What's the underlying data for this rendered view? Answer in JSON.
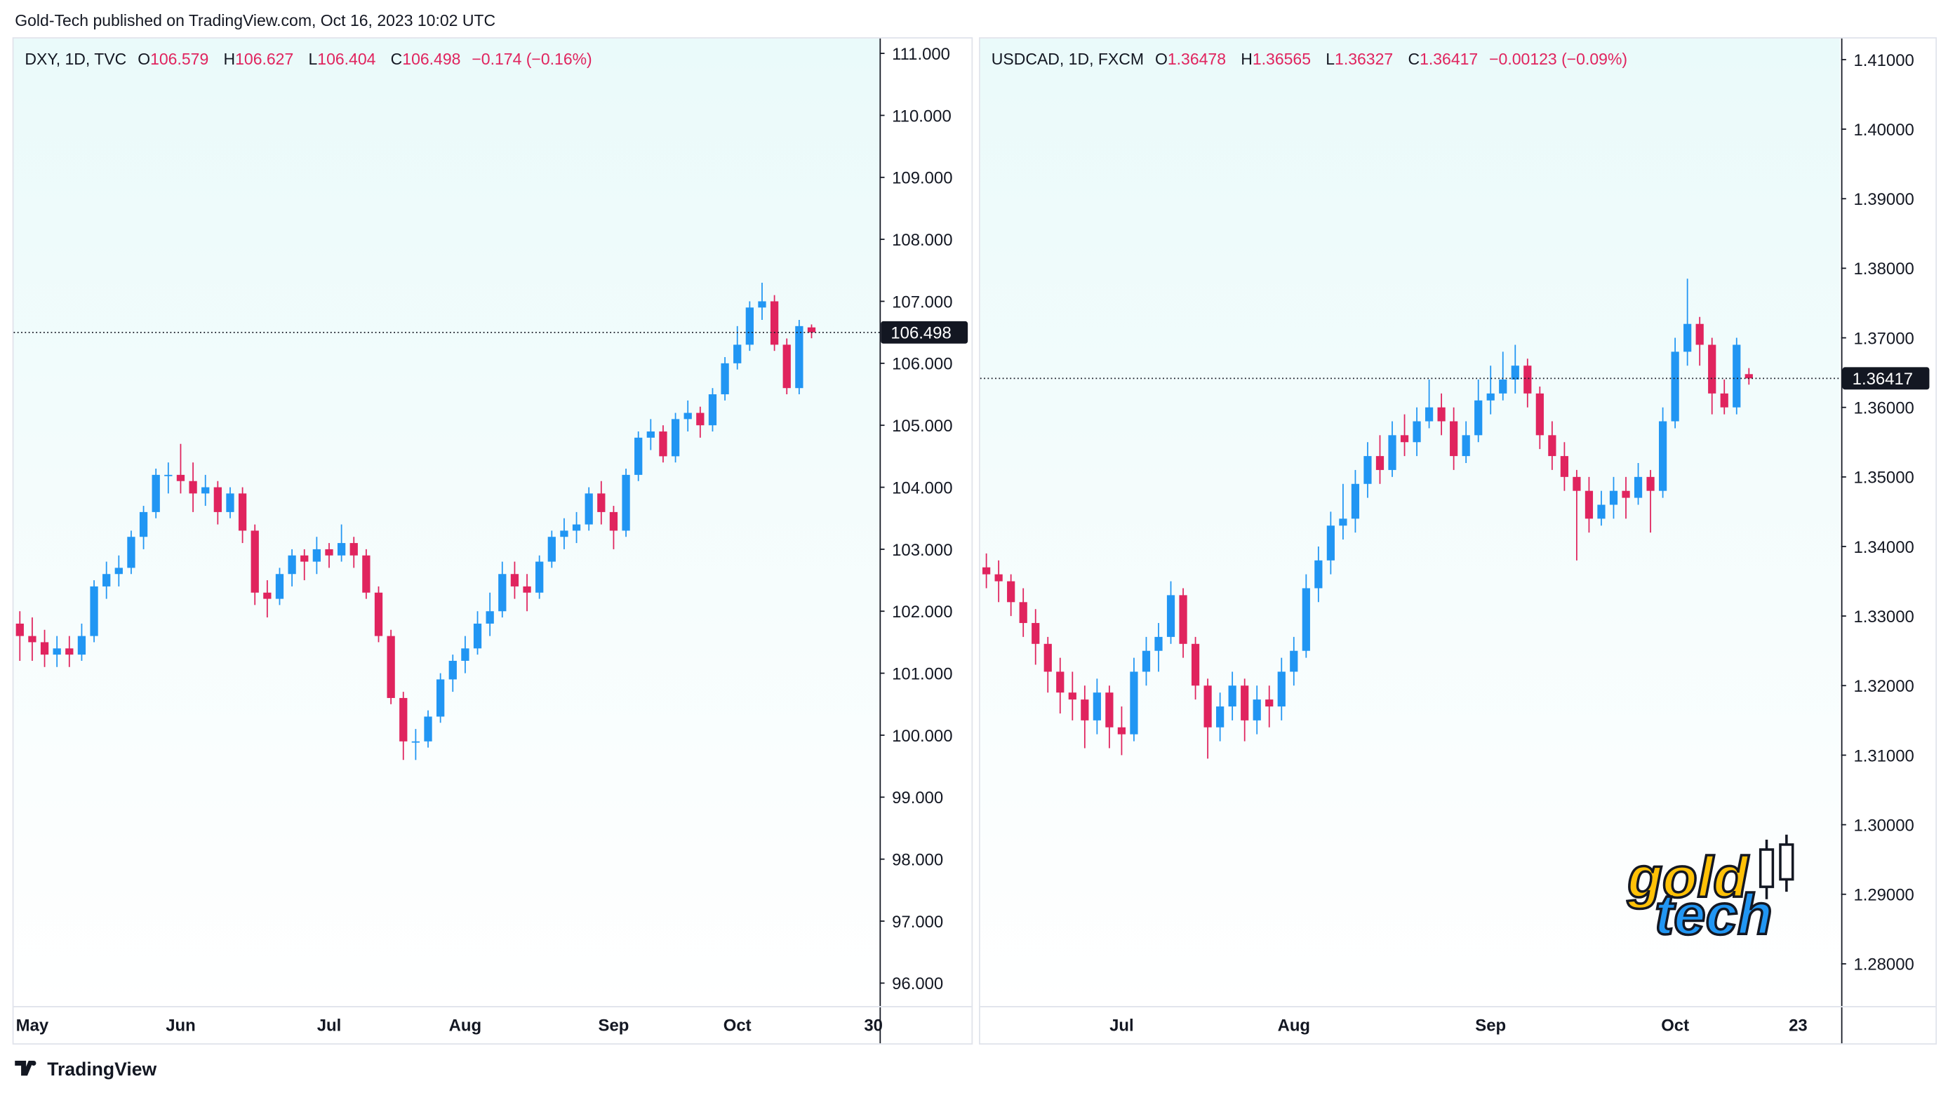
{
  "header": "Gold-Tech published on TradingView.com, Oct 16, 2023 10:02 UTC",
  "brand": "TradingView",
  "watermark": [
    "gold",
    "tech"
  ],
  "chart_data": [
    {
      "type": "candlestick",
      "legend": {
        "symbol": "DXY, 1D, TVC",
        "items": [
          {
            "key": "O",
            "value": "106.579"
          },
          {
            "key": "H",
            "value": "106.627"
          },
          {
            "key": "L",
            "value": "106.404"
          },
          {
            "key": "C",
            "value": "106.498"
          }
        ],
        "change": "−0.174 (−0.16%)"
      },
      "up_color": "#2196f3",
      "down_color": "#e0245e",
      "grid": false,
      "ylim": [
        95.63,
        111.26
      ],
      "yticks": [
        {
          "value": 96,
          "label": "96.000"
        },
        {
          "value": 97,
          "label": "97.000"
        },
        {
          "value": 98,
          "label": "98.000"
        },
        {
          "value": 99,
          "label": "99.000"
        },
        {
          "value": 100,
          "label": "100.000"
        },
        {
          "value": 101,
          "label": "101.000"
        },
        {
          "value": 102,
          "label": "102.000"
        },
        {
          "value": 103,
          "label": "103.000"
        },
        {
          "value": 104,
          "label": "104.000"
        },
        {
          "value": 105,
          "label": "105.000"
        },
        {
          "value": 106,
          "label": "106.000"
        },
        {
          "value": 107,
          "label": "107.000"
        },
        {
          "value": 108,
          "label": "108.000"
        },
        {
          "value": 109,
          "label": "109.000"
        },
        {
          "value": 110,
          "label": "110.000"
        },
        {
          "value": 111,
          "label": "111.000"
        }
      ],
      "last_price": 106.498,
      "categories": [
        null,
        "May",
        null,
        null,
        null,
        null,
        null,
        null,
        null,
        null,
        null,
        null,
        null,
        "Jun",
        null,
        null,
        null,
        null,
        null,
        null,
        null,
        null,
        null,
        null,
        null,
        "Jul",
        null,
        null,
        null,
        null,
        null,
        null,
        null,
        null,
        null,
        null,
        "Aug",
        null,
        null,
        null,
        null,
        null,
        null,
        null,
        null,
        null,
        null,
        null,
        "Sep",
        null,
        null,
        null,
        null,
        null,
        null,
        null,
        null,
        null,
        "Oct",
        null,
        null,
        null,
        null,
        null,
        null,
        null,
        null,
        null,
        null,
        "30"
      ],
      "candles": [
        [
          101.8,
          102.0,
          101.2,
          101.6
        ],
        [
          101.6,
          101.9,
          101.2,
          101.5
        ],
        [
          101.5,
          101.7,
          101.1,
          101.3
        ],
        [
          101.3,
          101.6,
          101.1,
          101.4
        ],
        [
          101.4,
          101.6,
          101.1,
          101.3
        ],
        [
          101.3,
          101.8,
          101.2,
          101.6
        ],
        [
          101.6,
          102.5,
          101.5,
          102.4
        ],
        [
          102.4,
          102.8,
          102.2,
          102.6
        ],
        [
          102.6,
          102.9,
          102.4,
          102.7
        ],
        [
          102.7,
          103.3,
          102.6,
          103.2
        ],
        [
          103.2,
          103.7,
          103.0,
          103.6
        ],
        [
          103.6,
          104.3,
          103.5,
          104.2
        ],
        [
          104.2,
          104.4,
          103.9,
          104.2
        ],
        [
          104.2,
          104.7,
          103.9,
          104.1
        ],
        [
          104.1,
          104.4,
          103.6,
          103.9
        ],
        [
          103.9,
          104.2,
          103.7,
          104.0
        ],
        [
          104.0,
          104.1,
          103.4,
          103.6
        ],
        [
          103.6,
          104.0,
          103.5,
          103.9
        ],
        [
          103.9,
          104.0,
          103.1,
          103.3
        ],
        [
          103.3,
          103.4,
          102.1,
          102.3
        ],
        [
          102.3,
          102.5,
          101.9,
          102.2
        ],
        [
          102.2,
          102.7,
          102.1,
          102.6
        ],
        [
          102.6,
          103.0,
          102.4,
          102.9
        ],
        [
          102.9,
          103.0,
          102.5,
          102.8
        ],
        [
          102.8,
          103.2,
          102.6,
          103.0
        ],
        [
          103.0,
          103.1,
          102.7,
          102.9
        ],
        [
          102.9,
          103.4,
          102.8,
          103.1
        ],
        [
          103.1,
          103.2,
          102.7,
          102.9
        ],
        [
          102.9,
          103.0,
          102.2,
          102.3
        ],
        [
          102.3,
          102.4,
          101.5,
          101.6
        ],
        [
          101.6,
          101.7,
          100.5,
          100.6
        ],
        [
          100.6,
          100.7,
          99.6,
          99.9
        ],
        [
          99.9,
          100.1,
          99.6,
          99.9
        ],
        [
          99.9,
          100.4,
          99.8,
          100.3
        ],
        [
          100.3,
          101.0,
          100.2,
          100.9
        ],
        [
          100.9,
          101.3,
          100.7,
          101.2
        ],
        [
          101.2,
          101.6,
          101.0,
          101.4
        ],
        [
          101.4,
          102.0,
          101.3,
          101.8
        ],
        [
          101.8,
          102.3,
          101.6,
          102.0
        ],
        [
          102.0,
          102.8,
          101.9,
          102.6
        ],
        [
          102.6,
          102.8,
          102.2,
          102.4
        ],
        [
          102.4,
          102.6,
          102.0,
          102.3
        ],
        [
          102.3,
          102.9,
          102.2,
          102.8
        ],
        [
          102.8,
          103.3,
          102.7,
          103.2
        ],
        [
          103.2,
          103.5,
          103.0,
          103.3
        ],
        [
          103.3,
          103.6,
          103.1,
          103.4
        ],
        [
          103.4,
          104.0,
          103.3,
          103.9
        ],
        [
          103.9,
          104.1,
          103.4,
          103.6
        ],
        [
          103.6,
          103.7,
          103.0,
          103.3
        ],
        [
          103.3,
          104.3,
          103.2,
          104.2
        ],
        [
          104.2,
          104.9,
          104.1,
          104.8
        ],
        [
          104.8,
          105.1,
          104.6,
          104.9
        ],
        [
          104.9,
          105.0,
          104.4,
          104.5
        ],
        [
          104.5,
          105.2,
          104.4,
          105.1
        ],
        [
          105.1,
          105.4,
          104.9,
          105.2
        ],
        [
          105.2,
          105.3,
          104.8,
          105.0
        ],
        [
          105.0,
          105.6,
          104.9,
          105.5
        ],
        [
          105.5,
          106.1,
          105.4,
          106.0
        ],
        [
          106.0,
          106.6,
          105.9,
          106.3
        ],
        [
          106.3,
          107.0,
          106.2,
          106.9
        ],
        [
          106.9,
          107.3,
          106.7,
          107.0
        ],
        [
          107.0,
          107.1,
          106.2,
          106.3
        ],
        [
          106.3,
          106.4,
          105.5,
          105.6
        ],
        [
          105.6,
          106.7,
          105.5,
          106.6
        ],
        [
          106.579,
          106.627,
          106.404,
          106.498
        ],
        null,
        null,
        null,
        null,
        null
      ]
    },
    {
      "type": "candlestick",
      "legend": {
        "symbol": "USDCAD, 1D, FXCM",
        "items": [
          {
            "key": "O",
            "value": "1.36478"
          },
          {
            "key": "H",
            "value": "1.36565"
          },
          {
            "key": "L",
            "value": "1.36327"
          },
          {
            "key": "C",
            "value": "1.36417"
          }
        ],
        "change": "−0.00123 (−0.09%)"
      },
      "up_color": "#2196f3",
      "down_color": "#e0245e",
      "grid": false,
      "ylim": [
        1.27393,
        1.41321
      ],
      "yticks": [
        {
          "value": 1.28,
          "label": "1.28000"
        },
        {
          "value": 1.29,
          "label": "1.29000"
        },
        {
          "value": 1.3,
          "label": "1.30000"
        },
        {
          "value": 1.31,
          "label": "1.31000"
        },
        {
          "value": 1.32,
          "label": "1.32000"
        },
        {
          "value": 1.33,
          "label": "1.33000"
        },
        {
          "value": 1.34,
          "label": "1.34000"
        },
        {
          "value": 1.35,
          "label": "1.35000"
        },
        {
          "value": 1.36,
          "label": "1.36000"
        },
        {
          "value": 1.37,
          "label": "1.37000"
        },
        {
          "value": 1.38,
          "label": "1.38000"
        },
        {
          "value": 1.39,
          "label": "1.39000"
        },
        {
          "value": 1.4,
          "label": "1.40000"
        },
        {
          "value": 1.41,
          "label": "1.41000"
        }
      ],
      "last_price": 1.36417,
      "categories": [
        null,
        null,
        null,
        null,
        null,
        null,
        null,
        null,
        null,
        null,
        null,
        "Jul",
        null,
        null,
        null,
        null,
        null,
        null,
        null,
        null,
        null,
        null,
        null,
        null,
        null,
        "Aug",
        null,
        null,
        null,
        null,
        null,
        null,
        null,
        null,
        null,
        null,
        null,
        null,
        null,
        null,
        null,
        "Sep",
        null,
        null,
        null,
        null,
        null,
        null,
        null,
        null,
        null,
        null,
        null,
        null,
        null,
        null,
        "Oct",
        null,
        null,
        null,
        null,
        null,
        null,
        null,
        null,
        null,
        "23",
        null,
        null,
        null
      ],
      "candles": [
        [
          1.337,
          1.339,
          1.334,
          1.336
        ],
        [
          1.336,
          1.338,
          1.332,
          1.335
        ],
        [
          1.335,
          1.336,
          1.33,
          1.332
        ],
        [
          1.332,
          1.334,
          1.327,
          1.329
        ],
        [
          1.329,
          1.331,
          1.323,
          1.326
        ],
        [
          1.326,
          1.327,
          1.319,
          1.322
        ],
        [
          1.322,
          1.324,
          1.316,
          1.319
        ],
        [
          1.319,
          1.322,
          1.315,
          1.318
        ],
        [
          1.318,
          1.32,
          1.311,
          1.315
        ],
        [
          1.315,
          1.321,
          1.313,
          1.319
        ],
        [
          1.319,
          1.32,
          1.311,
          1.314
        ],
        [
          1.314,
          1.317,
          1.31,
          1.313
        ],
        [
          1.313,
          1.324,
          1.312,
          1.322
        ],
        [
          1.322,
          1.327,
          1.32,
          1.325
        ],
        [
          1.325,
          1.329,
          1.322,
          1.327
        ],
        [
          1.327,
          1.335,
          1.326,
          1.333
        ],
        [
          1.333,
          1.334,
          1.324,
          1.326
        ],
        [
          1.326,
          1.327,
          1.318,
          1.32
        ],
        [
          1.32,
          1.321,
          1.3095,
          1.314
        ],
        [
          1.314,
          1.319,
          1.312,
          1.317
        ],
        [
          1.317,
          1.322,
          1.315,
          1.32
        ],
        [
          1.32,
          1.321,
          1.312,
          1.315
        ],
        [
          1.315,
          1.32,
          1.313,
          1.318
        ],
        [
          1.318,
          1.32,
          1.314,
          1.317
        ],
        [
          1.317,
          1.324,
          1.315,
          1.322
        ],
        [
          1.322,
          1.327,
          1.32,
          1.325
        ],
        [
          1.325,
          1.336,
          1.324,
          1.334
        ],
        [
          1.334,
          1.34,
          1.332,
          1.338
        ],
        [
          1.338,
          1.345,
          1.336,
          1.343
        ],
        [
          1.343,
          1.349,
          1.341,
          1.344
        ],
        [
          1.344,
          1.351,
          1.342,
          1.349
        ],
        [
          1.349,
          1.355,
          1.347,
          1.353
        ],
        [
          1.353,
          1.356,
          1.349,
          1.351
        ],
        [
          1.351,
          1.358,
          1.35,
          1.356
        ],
        [
          1.356,
          1.359,
          1.353,
          1.355
        ],
        [
          1.355,
          1.36,
          1.353,
          1.358
        ],
        [
          1.358,
          1.364,
          1.357,
          1.36
        ],
        [
          1.36,
          1.362,
          1.356,
          1.358
        ],
        [
          1.358,
          1.36,
          1.351,
          1.353
        ],
        [
          1.353,
          1.358,
          1.352,
          1.356
        ],
        [
          1.356,
          1.364,
          1.355,
          1.361
        ],
        [
          1.361,
          1.366,
          1.359,
          1.362
        ],
        [
          1.362,
          1.368,
          1.361,
          1.364
        ],
        [
          1.364,
          1.369,
          1.362,
          1.366
        ],
        [
          1.366,
          1.367,
          1.36,
          1.362
        ],
        [
          1.362,
          1.363,
          1.354,
          1.356
        ],
        [
          1.356,
          1.358,
          1.351,
          1.353
        ],
        [
          1.353,
          1.355,
          1.348,
          1.35
        ],
        [
          1.35,
          1.351,
          1.338,
          1.348
        ],
        [
          1.348,
          1.35,
          1.342,
          1.344
        ],
        [
          1.344,
          1.348,
          1.343,
          1.346
        ],
        [
          1.346,
          1.35,
          1.344,
          1.348
        ],
        [
          1.348,
          1.35,
          1.344,
          1.347
        ],
        [
          1.347,
          1.352,
          1.346,
          1.35
        ],
        [
          1.35,
          1.351,
          1.342,
          1.348
        ],
        [
          1.348,
          1.36,
          1.347,
          1.358
        ],
        [
          1.358,
          1.37,
          1.357,
          1.368
        ],
        [
          1.368,
          1.3785,
          1.366,
          1.372
        ],
        [
          1.372,
          1.373,
          1.366,
          1.369
        ],
        [
          1.369,
          1.37,
          1.359,
          1.362
        ],
        [
          1.362,
          1.364,
          1.359,
          1.36
        ],
        [
          1.36,
          1.37,
          1.359,
          1.369
        ],
        [
          1.36478,
          1.36565,
          1.36327,
          1.36417
        ],
        null,
        null,
        null,
        null,
        null,
        null,
        null
      ]
    }
  ]
}
